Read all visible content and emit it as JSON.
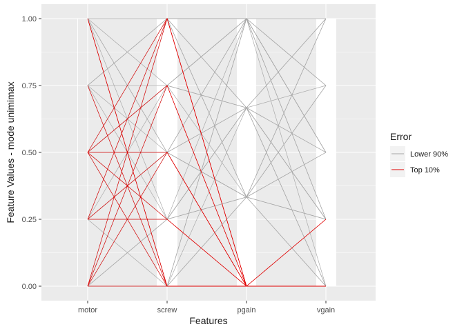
{
  "chart_data": {
    "type": "line",
    "subtype": "parallel-coordinates",
    "xlabel": "Features",
    "ylabel": "Feature Values - mode unimimax",
    "categories": [
      "motor",
      "screw",
      "pgain",
      "vgain"
    ],
    "y_ticks": [
      "0.00",
      "0.25",
      "0.50",
      "0.75",
      "1.00"
    ],
    "ylim": [
      0,
      1
    ],
    "grid": true,
    "legend": {
      "title": "Error",
      "position": "right",
      "entries": [
        {
          "label": "Lower 90%",
          "color": "#a6a6a6"
        },
        {
          "label": "Top 10%",
          "color": "#e00000"
        }
      ]
    },
    "series": [
      {
        "name": "Lower 90%",
        "color": "#a6a6a6",
        "lines": [
          [
            1.0,
            1.0,
            1.0,
            1.0
          ],
          [
            1.0,
            0.75,
            0.667,
            0.75
          ],
          [
            1.0,
            0.5,
            0.333,
            0.5
          ],
          [
            1.0,
            0.25,
            0.667,
            0.25
          ],
          [
            1.0,
            0.0,
            0.333,
            0.0
          ],
          [
            0.75,
            1.0,
            0.667,
            0.5
          ],
          [
            0.75,
            0.75,
            1.0,
            0.25
          ],
          [
            0.75,
            0.5,
            0.667,
            0.0
          ],
          [
            0.75,
            0.25,
            0.333,
            0.75
          ],
          [
            0.75,
            0.0,
            1.0,
            0.5
          ],
          [
            0.5,
            1.0,
            0.333,
            0.25
          ],
          [
            0.5,
            0.75,
            0.667,
            1.0
          ],
          [
            0.5,
            0.5,
            1.0,
            0.0
          ],
          [
            0.5,
            0.25,
            0.667,
            0.5
          ],
          [
            0.5,
            0.0,
            0.333,
            0.75
          ],
          [
            0.25,
            1.0,
            1.0,
            0.5
          ],
          [
            0.25,
            0.75,
            0.333,
            0.0
          ],
          [
            0.25,
            0.5,
            0.667,
            0.25
          ],
          [
            0.25,
            0.25,
            1.0,
            0.75
          ],
          [
            0.25,
            0.0,
            0.667,
            1.0
          ],
          [
            0.0,
            1.0,
            0.667,
            0.25
          ],
          [
            0.0,
            0.75,
            1.0,
            0.5
          ],
          [
            0.0,
            0.5,
            0.333,
            1.0
          ],
          [
            0.0,
            0.25,
            0.667,
            0.0
          ],
          [
            0.0,
            0.0,
            1.0,
            0.25
          ],
          [
            1.0,
            0.5,
            1.0,
            0.75
          ],
          [
            0.75,
            1.0,
            0.333,
            1.0
          ],
          [
            0.5,
            0.75,
            1.0,
            0.5
          ],
          [
            0.25,
            0.5,
            0.333,
            0.5
          ],
          [
            0.0,
            0.25,
            0.333,
            0.25
          ]
        ]
      },
      {
        "name": "Top 10%",
        "color": "#e00000",
        "lines": [
          [
            1.0,
            0.0,
            0.0,
            0.25
          ],
          [
            0.75,
            0.0,
            0.0,
            0.0
          ],
          [
            0.5,
            1.0,
            0.0,
            0.0
          ],
          [
            0.5,
            0.75,
            0.0,
            0.0
          ],
          [
            0.5,
            0.5,
            0.0,
            0.0
          ],
          [
            0.5,
            0.25,
            0.0,
            0.0
          ],
          [
            0.5,
            0.0,
            0.0,
            0.0
          ],
          [
            0.25,
            1.0,
            0.0,
            0.0
          ],
          [
            0.25,
            0.5,
            0.0,
            0.0
          ],
          [
            0.25,
            0.25,
            0.0,
            0.0
          ],
          [
            0.0,
            1.0,
            0.0,
            0.25
          ],
          [
            0.0,
            0.75,
            0.0,
            0.0
          ],
          [
            0.0,
            0.5,
            0.0,
            0.0
          ],
          [
            0.0,
            0.0,
            0.0,
            0.0
          ],
          [
            1.0,
            0.0,
            0.0,
            0.0
          ]
        ]
      }
    ]
  }
}
